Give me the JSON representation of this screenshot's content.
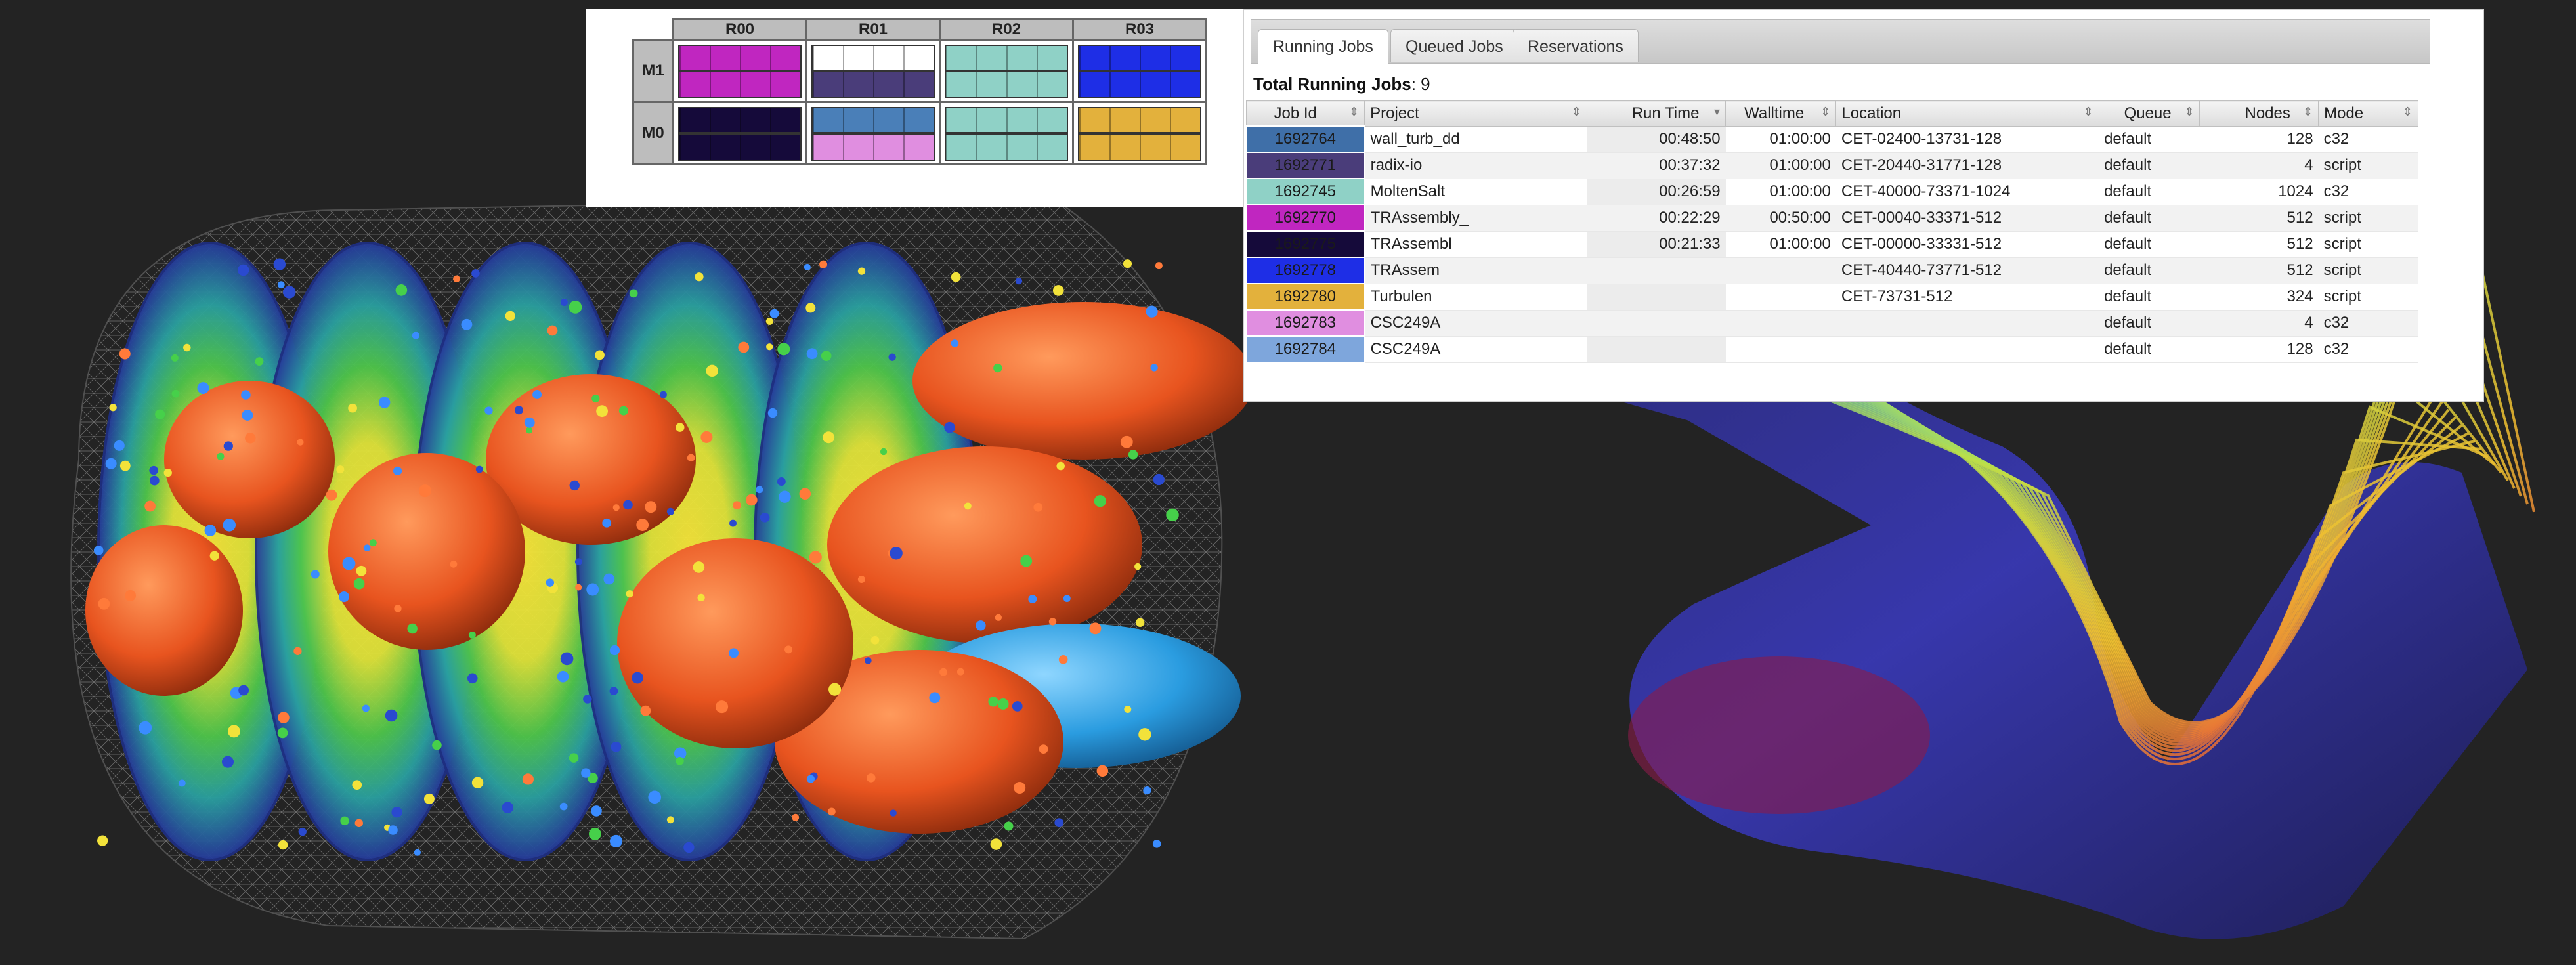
{
  "rack_grid": {
    "columns": [
      "R00",
      "R01",
      "R02",
      "R03"
    ],
    "rows": [
      {
        "label": "M1",
        "colors": [
          [
            "#c026c0",
            "#c026c0"
          ],
          [
            "#ffffff",
            "#4a3d7a"
          ],
          [
            "#8fd1c6",
            "#8fd1c6"
          ],
          [
            "#1e2ee6",
            "#1e2ee6"
          ]
        ]
      },
      {
        "label": "M0",
        "colors": [
          [
            "#150a3a",
            "#150a3a"
          ],
          [
            "#4a7fb8",
            "#e08ee0"
          ],
          [
            "#8fd1c6",
            "#8fd1c6"
          ],
          [
            "#e3b13c",
            "#e3b13c"
          ]
        ]
      }
    ]
  },
  "jobs_panel": {
    "tabs": [
      {
        "label": "Running Jobs",
        "active": true
      },
      {
        "label": "Queued Jobs",
        "active": false
      },
      {
        "label": "Reservations",
        "active": false
      }
    ],
    "total_label": "Total Running Jobs",
    "total_value": "9",
    "columns": [
      "Job Id",
      "Project",
      "Run Time",
      "Walltime",
      "Location",
      "Queue",
      "Nodes",
      "Mode"
    ],
    "rows": [
      {
        "job_id": "1692764",
        "color": "#3f6fa8",
        "project": "wall_turb_dd",
        "run_time": "00:48:50",
        "walltime": "01:00:00",
        "location": "CET-02400-13731-128",
        "queue": "default",
        "nodes": "128",
        "mode": "c32"
      },
      {
        "job_id": "1692771",
        "color": "#4a3d7a",
        "project": "radix-io",
        "run_time": "00:37:32",
        "walltime": "01:00:00",
        "location": "CET-20440-31771-128",
        "queue": "default",
        "nodes": "4",
        "mode": "script"
      },
      {
        "job_id": "1692745",
        "color": "#8fd1c6",
        "project": "MoltenSalt",
        "run_time": "00:26:59",
        "walltime": "01:00:00",
        "location": "CET-40000-73371-1024",
        "queue": "default",
        "nodes": "1024",
        "mode": "c32"
      },
      {
        "job_id": "1692770",
        "color": "#c026c0",
        "project": "TRAssembly_",
        "run_time": "00:22:29",
        "walltime": "00:50:00",
        "location": "CET-00040-33371-512",
        "queue": "default",
        "nodes": "512",
        "mode": "script"
      },
      {
        "job_id": "1692775",
        "color": "#150a3a",
        "project": "TRAssembl",
        "run_time": "00:21:33",
        "walltime": "01:00:00",
        "location": "CET-00000-33331-512",
        "queue": "default",
        "nodes": "512",
        "mode": "script"
      },
      {
        "job_id": "1692778",
        "color": "#1e2ee6",
        "project": "TRAssem",
        "run_time": "",
        "walltime": "",
        "location": "CET-40440-73771-512",
        "queue": "default",
        "nodes": "512",
        "mode": "script"
      },
      {
        "job_id": "1692780",
        "color": "#e3b13c",
        "project": "Turbulen",
        "run_time": "",
        "walltime": "",
        "location": "CET-73731-512",
        "queue": "default",
        "nodes": "324",
        "mode": "script"
      },
      {
        "job_id": "1692783",
        "color": "#e08ee0",
        "project": "CSC249A",
        "run_time": "",
        "walltime": "",
        "location": "",
        "queue": "default",
        "nodes": "4",
        "mode": "c32"
      },
      {
        "job_id": "1692784",
        "color": "#7ea6dc",
        "project": "CSC249A",
        "run_time": "",
        "walltime": "",
        "location": "",
        "queue": "default",
        "nodes": "128",
        "mode": "c32"
      }
    ]
  },
  "icons": {
    "sort": "sort-arrows-icon",
    "sort_active": "sort-desc-icon"
  }
}
